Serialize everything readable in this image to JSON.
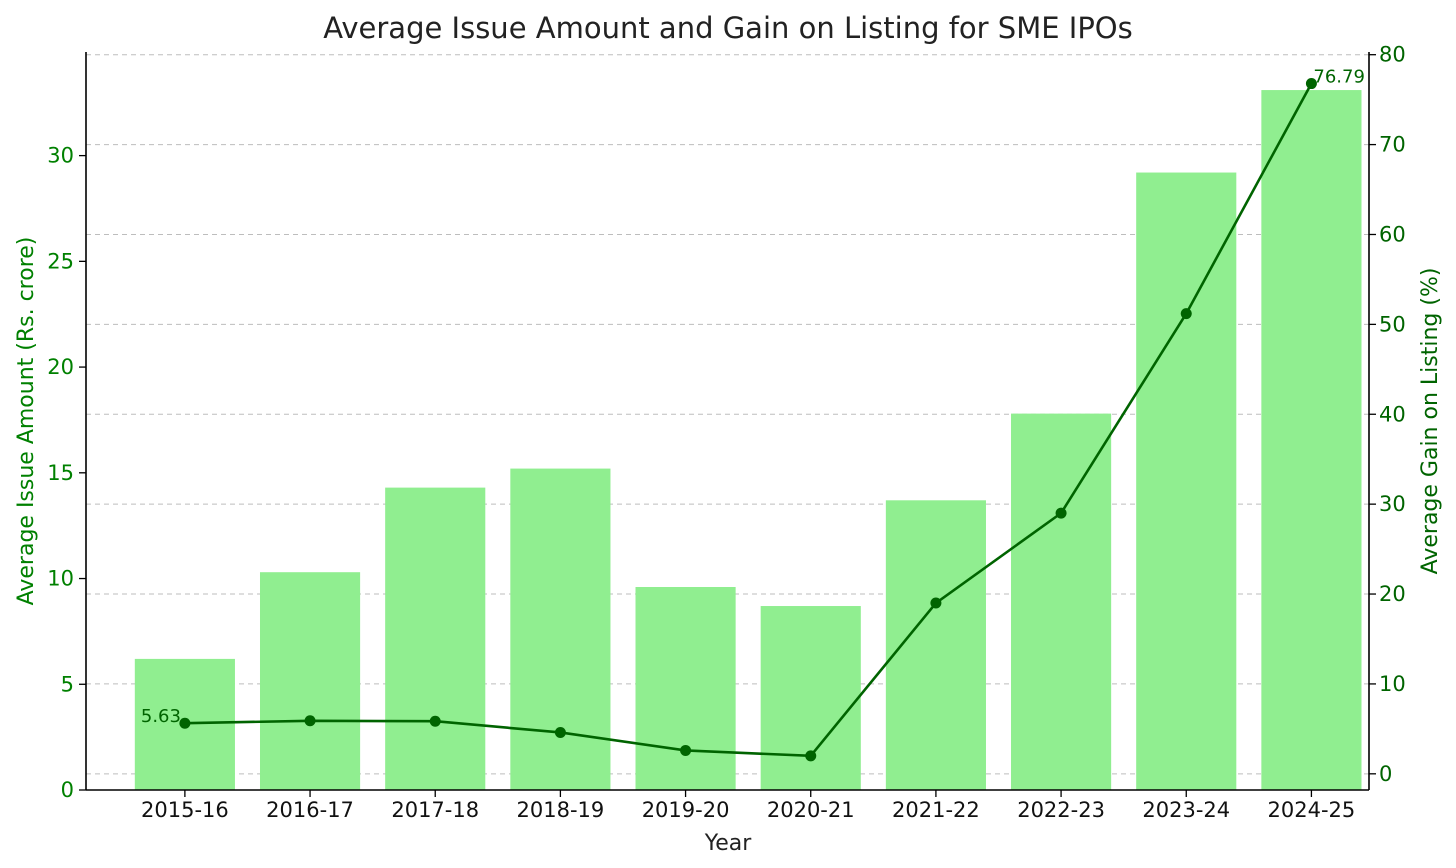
{
  "chart_data": {
    "type": "bar",
    "title": "Average Issue Amount and Gain on Listing for SME IPOs",
    "xlabel": "Year",
    "ylabel": "Average Issue Amount (Rs. crore)",
    "y2label": "Average Gain on Listing (%)",
    "categories": [
      "2015-16",
      "2016-17",
      "2017-18",
      "2018-19",
      "2019-20",
      "2020-21",
      "2021-22",
      "2022-23",
      "2023-24",
      "2024-25"
    ],
    "series": [
      {
        "name": "Average Issue Amount (Rs. crore)",
        "type": "bar",
        "axis": "left",
        "color": "#90ee90",
        "values": [
          6.2,
          10.3,
          14.3,
          15.2,
          9.6,
          8.7,
          13.7,
          17.8,
          29.2,
          33.1
        ]
      },
      {
        "name": "Average Gain on Listing (%)",
        "type": "line",
        "axis": "right",
        "color": "#006400",
        "values": [
          5.63,
          5.9,
          5.85,
          4.6,
          2.6,
          2.0,
          19.0,
          29.0,
          51.2,
          76.79
        ]
      }
    ],
    "ylim": [
      0,
      34.9
    ],
    "y2lim": [
      -1.8,
      80.3
    ],
    "yticks": [
      0,
      5,
      10,
      15,
      20,
      25,
      30
    ],
    "y2ticks": [
      0,
      10,
      20,
      30,
      40,
      50,
      60,
      70,
      80
    ],
    "grid": "horizontal dashed (right axis)",
    "annotations": [
      {
        "index": 0,
        "series": 1,
        "text": "5.63"
      },
      {
        "index": 9,
        "series": 1,
        "text": "76.79"
      }
    ],
    "left_axis_color": "#008000",
    "right_axis_color": "#006400"
  }
}
